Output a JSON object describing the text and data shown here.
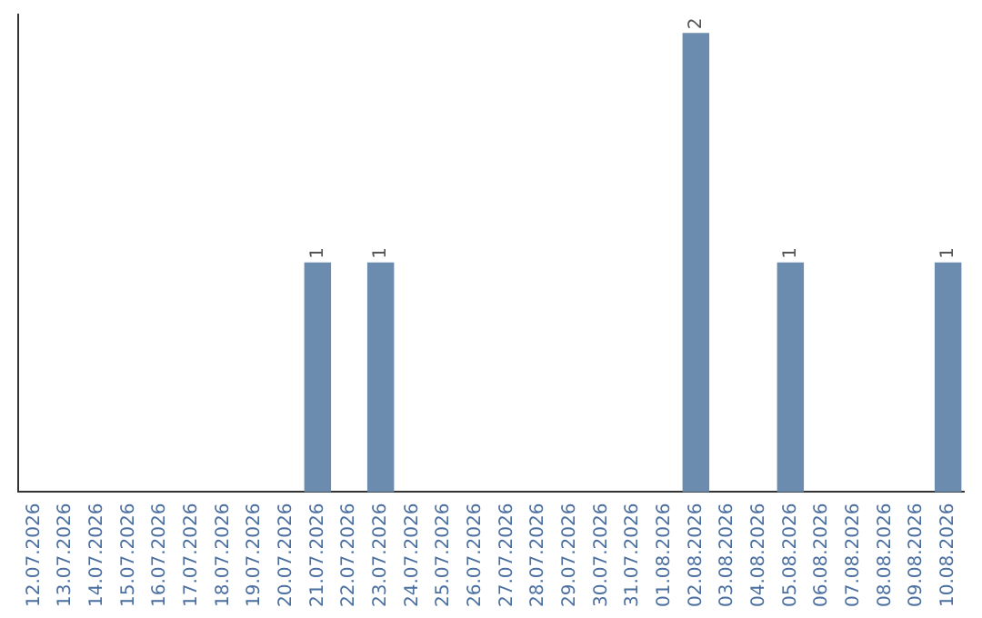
{
  "chart_data": {
    "type": "bar",
    "categories": [
      "12.07.2026",
      "13.07.2026",
      "14.07.2026",
      "15.07.2026",
      "16.07.2026",
      "17.07.2026",
      "18.07.2026",
      "19.07.2026",
      "20.07.2026",
      "21.07.2026",
      "22.07.2026",
      "23.07.2026",
      "24.07.2026",
      "25.07.2026",
      "26.07.2026",
      "27.07.2026",
      "28.07.2026",
      "29.07.2026",
      "30.07.2026",
      "31.07.2026",
      "01.08.2026",
      "02.08.2026",
      "03.08.2026",
      "04.08.2026",
      "05.08.2026",
      "06.08.2026",
      "07.08.2026",
      "08.08.2026",
      "09.08.2026",
      "10.08.2026"
    ],
    "values": [
      0,
      0,
      0,
      0,
      0,
      0,
      0,
      0,
      0,
      1,
      0,
      1,
      0,
      0,
      0,
      0,
      0,
      0,
      0,
      0,
      0,
      2,
      0,
      0,
      1,
      0,
      0,
      0,
      0,
      1
    ],
    "value_labels": [
      null,
      null,
      null,
      null,
      null,
      null,
      null,
      null,
      null,
      "1",
      null,
      "1",
      null,
      null,
      null,
      null,
      null,
      null,
      null,
      null,
      null,
      "2",
      null,
      null,
      "1",
      null,
      null,
      null,
      null,
      "1"
    ],
    "color": "#6b8cae",
    "ylim": [
      0,
      2.08
    ],
    "tick_labels": "x",
    "grid": false,
    "legend": false
  }
}
